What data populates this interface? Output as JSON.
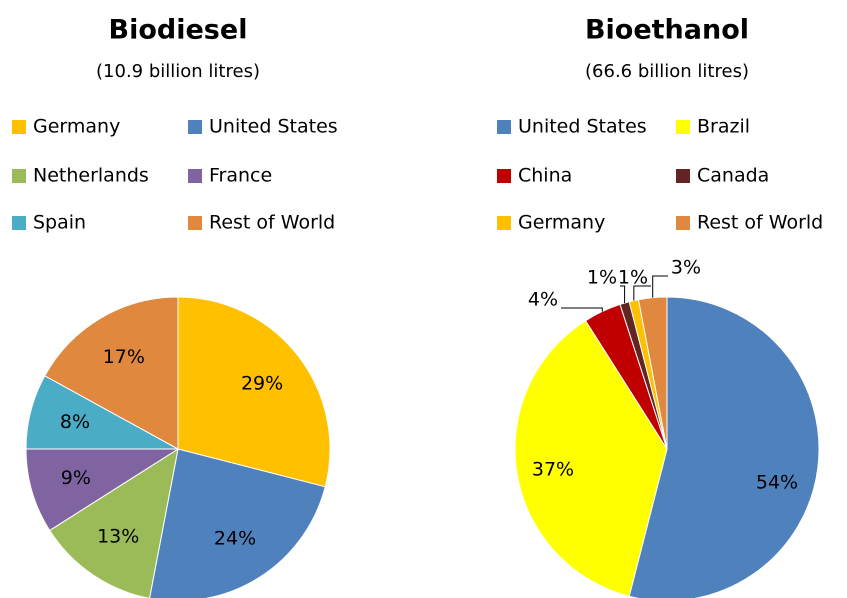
{
  "chart_data": [
    {
      "type": "pie",
      "title": "Biodiesel",
      "subtitle": "(10.9 billion litres)",
      "categories": [
        "Germany",
        "United States",
        "Netherlands",
        "France",
        "Spain",
        "Rest of World"
      ],
      "values": [
        29,
        24,
        13,
        9,
        8,
        17
      ],
      "value_labels": [
        "29%",
        "24%",
        "13%",
        "9%",
        "8%",
        "17%"
      ],
      "colors": [
        "#FFC000",
        "#4F81BD",
        "#9BBB59",
        "#8064A2",
        "#4BACC6",
        "#E0883E"
      ]
    },
    {
      "type": "pie",
      "title": "Bioethanol",
      "subtitle": "(66.6 billion litres)",
      "categories": [
        "United States",
        "Brazil",
        "China",
        "Canada",
        "Germany",
        "Rest of World"
      ],
      "values": [
        54,
        37,
        4,
        1,
        1,
        3
      ],
      "value_labels": [
        "54%",
        "37%",
        "4%",
        "1%",
        "1%",
        "3%"
      ],
      "colors": [
        "#4F81BD",
        "#FFFF00",
        "#C00000",
        "#632523",
        "#FFC000",
        "#E0883E"
      ]
    }
  ]
}
